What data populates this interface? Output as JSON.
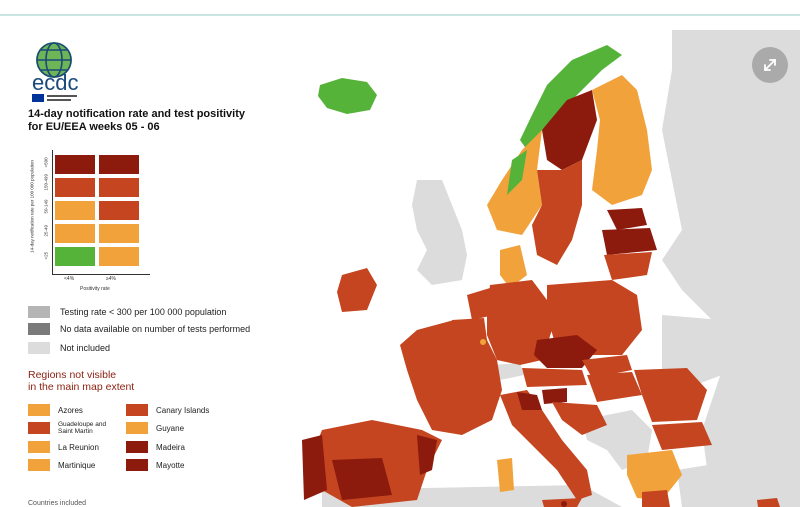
{
  "header_strip": "",
  "legend": {
    "title_line1": "14-day notification rate and test positivity",
    "title_line2": "for EU/EEA weeks 05 - 06",
    "y_axis_label": "14-day notification rate per 100 000 population",
    "y_ticks": [
      ">500",
      "150-499",
      "50-149",
      "25-49",
      "<25"
    ],
    "x_axis_label": "Positivity rate",
    "x_ticks": [
      "<4%",
      "≥4%"
    ],
    "matrix_colors": [
      [
        "#8c1a0d",
        "#8c1a0d"
      ],
      [
        "#c4451f",
        "#c4451f"
      ],
      [
        "#f2a23a",
        "#c4451f"
      ],
      [
        "#f2a23a",
        "#f2a23a"
      ],
      [
        "#55b33a",
        "#f2a23a"
      ]
    ],
    "items": [
      {
        "label": "Testing rate < 300 per 100 000 population",
        "color": "#b5b5b5"
      },
      {
        "label": "No data available on number of tests performed",
        "color": "#7a7a7a"
      },
      {
        "label": "Not included",
        "color": "#dcdcdc"
      }
    ],
    "regions_title_line1": "Regions not visible",
    "regions_title_line2": "in the main map extent",
    "regions": [
      {
        "label": "Azores",
        "color": "#f2a23a"
      },
      {
        "label": "Canary Islands",
        "color": "#c4451f"
      },
      {
        "label": "Guadeloupe and Saint Martin",
        "color": "#c4451f"
      },
      {
        "label": "Guyane",
        "color": "#f2a23a"
      },
      {
        "label": "La Reunion",
        "color": "#f2a23a"
      },
      {
        "label": "Madeira",
        "color": "#8c1a0d"
      },
      {
        "label": "Martinique",
        "color": "#f2a23a"
      },
      {
        "label": "Mayotte",
        "color": "#8c1a0d"
      }
    ],
    "footer_text": "Countries included"
  },
  "logo": {
    "text": "ecdc"
  },
  "colors": {
    "dark_red": "#8c1a0d",
    "red": "#c4451f",
    "orange": "#f2a23a",
    "green": "#55b33a",
    "grey": "#dcdcdc",
    "sea": "#ffffff"
  },
  "controls": {
    "expand_icon": "expand-arrows-icon"
  }
}
